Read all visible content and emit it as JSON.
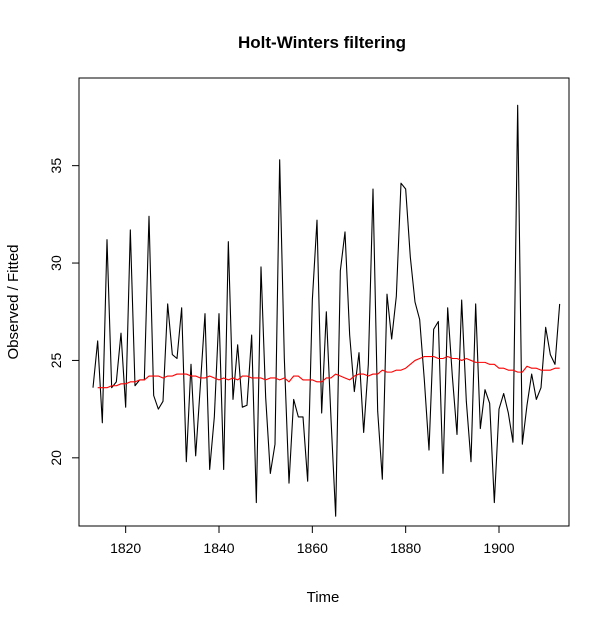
{
  "chart_data": {
    "type": "line",
    "title": "Holt-Winters filtering",
    "xlabel": "Time",
    "ylabel": "Observed / Fitted",
    "xlim": [
      1810,
      1915
    ],
    "ylim": [
      16.5,
      39.5
    ],
    "x_ticks": [
      1820,
      1840,
      1860,
      1880,
      1900
    ],
    "y_ticks": [
      20,
      25,
      30,
      35
    ],
    "series": [
      {
        "color": "#000000",
        "x_start": 1813,
        "values": [
          23.6,
          26.0,
          21.8,
          31.2,
          23.6,
          23.9,
          26.4,
          22.6,
          31.7,
          23.7,
          24.0,
          24.0,
          32.4,
          23.2,
          22.5,
          22.9,
          27.9,
          25.3,
          25.1,
          27.7,
          19.8,
          24.8,
          20.1,
          23.7,
          27.4,
          19.4,
          22.1,
          27.4,
          19.4,
          31.1,
          23.0,
          25.8,
          22.6,
          22.7,
          26.3,
          17.7,
          29.8,
          23.1,
          19.2,
          20.7,
          35.3,
          25.1,
          18.7,
          23.0,
          22.1,
          22.1,
          18.8,
          28.1,
          32.2,
          22.3,
          27.5,
          22.0,
          17.0,
          29.6,
          31.6,
          26.3,
          23.4,
          25.4,
          21.3,
          24.8,
          33.8,
          22.4,
          18.9,
          28.4,
          26.1,
          28.3,
          34.1,
          33.8,
          30.3,
          28.0,
          27.1,
          24.0,
          20.4,
          26.6,
          27.0,
          19.2,
          27.7,
          24.2,
          21.2,
          28.1,
          22.9,
          19.8,
          27.9,
          21.5,
          23.5,
          22.8,
          17.7,
          22.5,
          23.3,
          22.3,
          20.8,
          38.1,
          20.7,
          22.7,
          24.3,
          23.0,
          23.6,
          26.7,
          25.3,
          24.8,
          27.9
        ]
      },
      {
        "color": "#ff0000",
        "x_start": 1814,
        "values": [
          23.6,
          23.6,
          23.6,
          23.7,
          23.7,
          23.8,
          23.8,
          23.9,
          23.9,
          24.0,
          24.0,
          24.2,
          24.2,
          24.2,
          24.1,
          24.2,
          24.2,
          24.3,
          24.3,
          24.3,
          24.2,
          24.2,
          24.1,
          24.1,
          24.2,
          24.1,
          24.0,
          24.1,
          24.0,
          24.1,
          24.0,
          24.2,
          24.2,
          24.1,
          24.1,
          24.1,
          24.0,
          24.1,
          24.1,
          24.0,
          24.1,
          23.9,
          24.2,
          24.2,
          24.0,
          24.0,
          24.0,
          23.9,
          23.9,
          24.1,
          24.1,
          24.3,
          24.2,
          24.1,
          24.0,
          24.2,
          24.3,
          24.3,
          24.2,
          24.3,
          24.3,
          24.5,
          24.4,
          24.4,
          24.5,
          24.5,
          24.6,
          24.8,
          25.0,
          25.1,
          25.2,
          25.2,
          25.2,
          25.1,
          25.1,
          25.2,
          25.1,
          25.1,
          25.0,
          25.1,
          25.0,
          24.9,
          24.9,
          24.9,
          24.8,
          24.8,
          24.6,
          24.6,
          24.5,
          24.5,
          24.4,
          24.4,
          24.7,
          24.6,
          24.6,
          24.5,
          24.5,
          24.5,
          24.6,
          24.6
        ]
      }
    ]
  }
}
